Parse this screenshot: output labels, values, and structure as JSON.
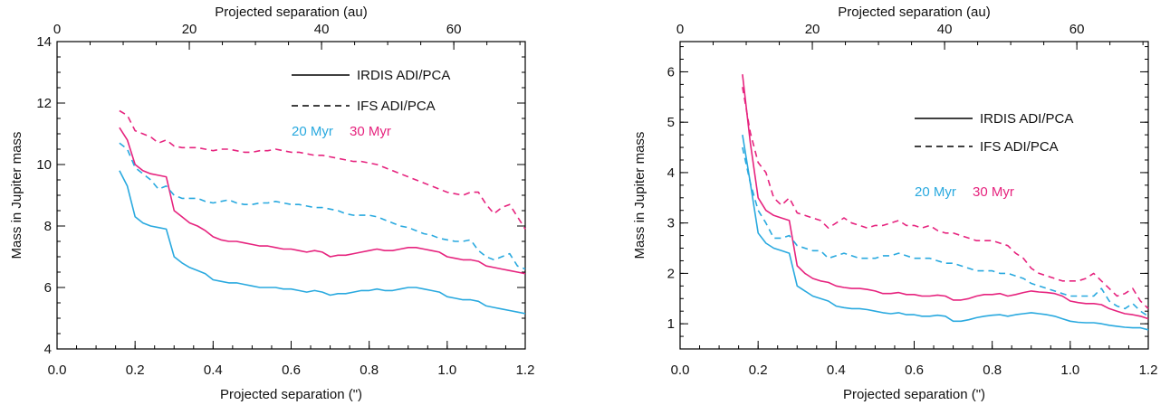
{
  "chart_data": [
    {
      "type": "line",
      "xlabel": "Projected separation (\")",
      "ylabel": "Mass in Jupiter mass",
      "top_xlabel": "Projected separation (au)",
      "xlim": [
        0.0,
        1.2
      ],
      "ylim": [
        4,
        14
      ],
      "top_xlim": [
        0,
        70.8
      ],
      "x_ticks": [
        "0.0",
        "0.2",
        "0.4",
        "0.6",
        "0.8",
        "1.0",
        "1.2"
      ],
      "y_ticks": [
        "4",
        "6",
        "8",
        "10",
        "12",
        "14"
      ],
      "top_ticks": [
        "0",
        "20",
        "40",
        "60"
      ],
      "legend": {
        "solid": "IRDIS ADI/PCA",
        "dashed": "IFS ADI/PCA"
      },
      "ages": [
        {
          "label": "20 Myr",
          "color": "#29a9df"
        },
        {
          "label": "30 Myr",
          "color": "#e6237e"
        }
      ],
      "series": [
        {
          "age": "20 Myr",
          "instrument": "IRDIS ADI/PCA",
          "style": "solid",
          "color": "#29a9df",
          "x": [
            0.16,
            0.18,
            0.2,
            0.22,
            0.24,
            0.26,
            0.28,
            0.3,
            0.32,
            0.34,
            0.36,
            0.38,
            0.4,
            0.42,
            0.44,
            0.46,
            0.48,
            0.5,
            0.52,
            0.54,
            0.56,
            0.58,
            0.6,
            0.62,
            0.64,
            0.66,
            0.68,
            0.7,
            0.72,
            0.74,
            0.76,
            0.78,
            0.8,
            0.82,
            0.84,
            0.86,
            0.88,
            0.9,
            0.92,
            0.94,
            0.96,
            0.98,
            1.0,
            1.02,
            1.04,
            1.06,
            1.08,
            1.1,
            1.12,
            1.14,
            1.16,
            1.18,
            1.2
          ],
          "y": [
            9.8,
            9.3,
            8.3,
            8.1,
            8.0,
            7.95,
            7.9,
            7.0,
            6.8,
            6.65,
            6.55,
            6.45,
            6.25,
            6.2,
            6.15,
            6.15,
            6.1,
            6.05,
            6.0,
            6.0,
            6.0,
            5.95,
            5.95,
            5.9,
            5.85,
            5.9,
            5.85,
            5.75,
            5.8,
            5.8,
            5.85,
            5.9,
            5.9,
            5.95,
            5.9,
            5.9,
            5.95,
            6.0,
            6.0,
            5.95,
            5.9,
            5.85,
            5.7,
            5.65,
            5.6,
            5.6,
            5.55,
            5.4,
            5.35,
            5.3,
            5.25,
            5.2,
            5.15
          ]
        },
        {
          "age": "30 Myr",
          "instrument": "IRDIS ADI/PCA",
          "style": "solid",
          "color": "#e6237e",
          "x": [
            0.16,
            0.18,
            0.2,
            0.22,
            0.24,
            0.26,
            0.28,
            0.3,
            0.32,
            0.34,
            0.36,
            0.38,
            0.4,
            0.42,
            0.44,
            0.46,
            0.48,
            0.5,
            0.52,
            0.54,
            0.56,
            0.58,
            0.6,
            0.62,
            0.64,
            0.66,
            0.68,
            0.7,
            0.72,
            0.74,
            0.76,
            0.78,
            0.8,
            0.82,
            0.84,
            0.86,
            0.88,
            0.9,
            0.92,
            0.94,
            0.96,
            0.98,
            1.0,
            1.02,
            1.04,
            1.06,
            1.08,
            1.1,
            1.12,
            1.14,
            1.16,
            1.18,
            1.2
          ],
          "y": [
            11.2,
            10.8,
            10.0,
            9.8,
            9.7,
            9.65,
            9.6,
            8.5,
            8.3,
            8.1,
            8.0,
            7.85,
            7.65,
            7.55,
            7.5,
            7.5,
            7.45,
            7.4,
            7.35,
            7.35,
            7.3,
            7.25,
            7.25,
            7.2,
            7.15,
            7.2,
            7.15,
            7.0,
            7.05,
            7.05,
            7.1,
            7.15,
            7.2,
            7.25,
            7.2,
            7.2,
            7.25,
            7.3,
            7.3,
            7.25,
            7.2,
            7.15,
            7.0,
            6.95,
            6.9,
            6.9,
            6.85,
            6.7,
            6.65,
            6.6,
            6.55,
            6.5,
            6.45
          ]
        },
        {
          "age": "20 Myr",
          "instrument": "IFS ADI/PCA",
          "style": "dashed",
          "color": "#29a9df",
          "x": [
            0.16,
            0.18,
            0.2,
            0.22,
            0.24,
            0.26,
            0.28,
            0.3,
            0.32,
            0.34,
            0.36,
            0.38,
            0.4,
            0.42,
            0.44,
            0.46,
            0.48,
            0.5,
            0.52,
            0.54,
            0.56,
            0.58,
            0.6,
            0.62,
            0.64,
            0.66,
            0.68,
            0.7,
            0.72,
            0.74,
            0.76,
            0.78,
            0.8,
            0.82,
            0.84,
            0.86,
            0.88,
            0.9,
            0.92,
            0.94,
            0.96,
            0.98,
            1.0,
            1.02,
            1.04,
            1.06,
            1.08,
            1.1,
            1.12,
            1.14,
            1.16,
            1.18,
            1.2
          ],
          "y": [
            10.7,
            10.5,
            9.9,
            9.7,
            9.5,
            9.2,
            9.3,
            9.0,
            8.9,
            8.9,
            8.9,
            8.8,
            8.75,
            8.8,
            8.85,
            8.75,
            8.7,
            8.7,
            8.75,
            8.75,
            8.8,
            8.75,
            8.7,
            8.7,
            8.65,
            8.6,
            8.6,
            8.55,
            8.5,
            8.4,
            8.35,
            8.35,
            8.35,
            8.3,
            8.2,
            8.1,
            8.0,
            7.95,
            7.85,
            7.75,
            7.7,
            7.6,
            7.55,
            7.5,
            7.5,
            7.55,
            7.2,
            7.0,
            6.9,
            7.0,
            7.1,
            6.7,
            6.6
          ]
        },
        {
          "age": "30 Myr",
          "instrument": "IFS ADI/PCA",
          "style": "dashed",
          "color": "#e6237e",
          "x": [
            0.16,
            0.18,
            0.2,
            0.22,
            0.24,
            0.26,
            0.28,
            0.3,
            0.32,
            0.34,
            0.36,
            0.38,
            0.4,
            0.42,
            0.44,
            0.46,
            0.48,
            0.5,
            0.52,
            0.54,
            0.56,
            0.58,
            0.6,
            0.62,
            0.64,
            0.66,
            0.68,
            0.7,
            0.72,
            0.74,
            0.76,
            0.78,
            0.8,
            0.82,
            0.84,
            0.86,
            0.88,
            0.9,
            0.92,
            0.94,
            0.96,
            0.98,
            1.0,
            1.02,
            1.04,
            1.06,
            1.08,
            1.1,
            1.12,
            1.14,
            1.16,
            1.18,
            1.2
          ],
          "y": [
            11.75,
            11.6,
            11.1,
            11.0,
            10.9,
            10.7,
            10.8,
            10.6,
            10.55,
            10.55,
            10.55,
            10.5,
            10.45,
            10.5,
            10.5,
            10.45,
            10.4,
            10.4,
            10.45,
            10.45,
            10.5,
            10.45,
            10.4,
            10.4,
            10.35,
            10.3,
            10.3,
            10.25,
            10.2,
            10.15,
            10.1,
            10.1,
            10.05,
            10.0,
            9.9,
            9.8,
            9.7,
            9.6,
            9.5,
            9.4,
            9.3,
            9.2,
            9.1,
            9.05,
            9.0,
            9.1,
            9.1,
            8.7,
            8.4,
            8.6,
            8.7,
            8.3,
            7.9
          ]
        }
      ]
    },
    {
      "type": "line",
      "xlabel": "Projected separation (\")",
      "ylabel": "Mass in Jupiter mass",
      "top_xlabel": "Projected separation (au)",
      "xlim": [
        0.0,
        1.2
      ],
      "ylim": [
        0.5,
        6.6
      ],
      "top_xlim": [
        0,
        70.8
      ],
      "x_ticks": [
        "0.0",
        "0.2",
        "0.4",
        "0.6",
        "0.8",
        "1.0",
        "1.2"
      ],
      "y_ticks": [
        "1",
        "2",
        "3",
        "4",
        "5",
        "6"
      ],
      "top_ticks": [
        "0",
        "20",
        "40",
        "60"
      ],
      "legend": {
        "solid": "IRDIS ADI/PCA",
        "dashed": "IFS ADI/PCA"
      },
      "ages": [
        {
          "label": "20 Myr",
          "color": "#29a9df"
        },
        {
          "label": "30 Myr",
          "color": "#e6237e"
        }
      ],
      "series": [
        {
          "age": "20 Myr",
          "instrument": "IRDIS ADI/PCA",
          "style": "solid",
          "color": "#29a9df",
          "x": [
            0.16,
            0.18,
            0.2,
            0.22,
            0.24,
            0.26,
            0.28,
            0.3,
            0.32,
            0.34,
            0.36,
            0.38,
            0.4,
            0.42,
            0.44,
            0.46,
            0.48,
            0.5,
            0.52,
            0.54,
            0.56,
            0.58,
            0.6,
            0.62,
            0.64,
            0.66,
            0.68,
            0.7,
            0.72,
            0.74,
            0.76,
            0.78,
            0.8,
            0.82,
            0.84,
            0.86,
            0.88,
            0.9,
            0.92,
            0.94,
            0.96,
            0.98,
            1.0,
            1.02,
            1.04,
            1.06,
            1.08,
            1.1,
            1.12,
            1.14,
            1.16,
            1.18,
            1.2
          ],
          "y": [
            4.75,
            3.8,
            2.8,
            2.6,
            2.5,
            2.45,
            2.4,
            1.75,
            1.65,
            1.55,
            1.5,
            1.45,
            1.35,
            1.32,
            1.3,
            1.3,
            1.28,
            1.25,
            1.22,
            1.2,
            1.22,
            1.18,
            1.18,
            1.15,
            1.15,
            1.17,
            1.15,
            1.05,
            1.05,
            1.08,
            1.12,
            1.15,
            1.17,
            1.18,
            1.15,
            1.18,
            1.2,
            1.22,
            1.2,
            1.18,
            1.15,
            1.1,
            1.05,
            1.03,
            1.02,
            1.02,
            1.0,
            0.97,
            0.95,
            0.93,
            0.92,
            0.92,
            0.88
          ]
        },
        {
          "age": "30 Myr",
          "instrument": "IRDIS ADI/PCA",
          "style": "solid",
          "color": "#e6237e",
          "x": [
            0.16,
            0.18,
            0.2,
            0.22,
            0.24,
            0.26,
            0.28,
            0.3,
            0.32,
            0.34,
            0.36,
            0.38,
            0.4,
            0.42,
            0.44,
            0.46,
            0.48,
            0.5,
            0.52,
            0.54,
            0.56,
            0.58,
            0.6,
            0.62,
            0.64,
            0.66,
            0.68,
            0.7,
            0.72,
            0.74,
            0.76,
            0.78,
            0.8,
            0.82,
            0.84,
            0.86,
            0.88,
            0.9,
            0.92,
            0.94,
            0.96,
            0.98,
            1.0,
            1.02,
            1.04,
            1.06,
            1.08,
            1.1,
            1.12,
            1.14,
            1.16,
            1.18,
            1.2
          ],
          "y": [
            5.95,
            4.6,
            3.5,
            3.25,
            3.15,
            3.1,
            3.05,
            2.15,
            2.0,
            1.9,
            1.85,
            1.82,
            1.75,
            1.72,
            1.7,
            1.7,
            1.68,
            1.65,
            1.6,
            1.6,
            1.62,
            1.58,
            1.58,
            1.55,
            1.55,
            1.57,
            1.55,
            1.47,
            1.47,
            1.5,
            1.55,
            1.58,
            1.58,
            1.6,
            1.55,
            1.58,
            1.62,
            1.65,
            1.63,
            1.62,
            1.6,
            1.55,
            1.45,
            1.42,
            1.4,
            1.4,
            1.38,
            1.3,
            1.25,
            1.2,
            1.18,
            1.15,
            1.1
          ]
        },
        {
          "age": "20 Myr",
          "instrument": "IFS ADI/PCA",
          "style": "dashed",
          "color": "#29a9df",
          "x": [
            0.16,
            0.18,
            0.2,
            0.22,
            0.24,
            0.26,
            0.28,
            0.3,
            0.32,
            0.34,
            0.36,
            0.38,
            0.4,
            0.42,
            0.44,
            0.46,
            0.48,
            0.5,
            0.52,
            0.54,
            0.56,
            0.58,
            0.6,
            0.62,
            0.64,
            0.66,
            0.68,
            0.7,
            0.72,
            0.74,
            0.76,
            0.78,
            0.8,
            0.82,
            0.84,
            0.86,
            0.88,
            0.9,
            0.92,
            0.94,
            0.96,
            0.98,
            1.0,
            1.02,
            1.04,
            1.06,
            1.08,
            1.1,
            1.12,
            1.14,
            1.16,
            1.18,
            1.2
          ],
          "y": [
            4.5,
            3.8,
            3.25,
            3.0,
            2.7,
            2.7,
            2.75,
            2.55,
            2.5,
            2.45,
            2.45,
            2.3,
            2.35,
            2.4,
            2.35,
            2.3,
            2.3,
            2.3,
            2.35,
            2.35,
            2.4,
            2.35,
            2.3,
            2.3,
            2.3,
            2.25,
            2.2,
            2.2,
            2.15,
            2.1,
            2.05,
            2.05,
            2.05,
            2.0,
            2.0,
            1.95,
            1.9,
            1.8,
            1.75,
            1.7,
            1.65,
            1.6,
            1.55,
            1.55,
            1.55,
            1.55,
            1.7,
            1.45,
            1.35,
            1.3,
            1.4,
            1.25,
            1.15
          ]
        },
        {
          "age": "30 Myr",
          "instrument": "IFS ADI/PCA",
          "style": "dashed",
          "color": "#e6237e",
          "x": [
            0.16,
            0.18,
            0.2,
            0.22,
            0.24,
            0.26,
            0.28,
            0.3,
            0.32,
            0.34,
            0.36,
            0.38,
            0.4,
            0.42,
            0.44,
            0.46,
            0.48,
            0.5,
            0.52,
            0.54,
            0.56,
            0.58,
            0.6,
            0.62,
            0.64,
            0.66,
            0.68,
            0.7,
            0.72,
            0.74,
            0.76,
            0.78,
            0.8,
            0.82,
            0.84,
            0.86,
            0.88,
            0.9,
            0.92,
            0.94,
            0.96,
            0.98,
            1.0,
            1.02,
            1.04,
            1.06,
            1.08,
            1.1,
            1.12,
            1.14,
            1.16,
            1.18,
            1.2
          ],
          "y": [
            5.7,
            4.8,
            4.2,
            4.0,
            3.5,
            3.35,
            3.5,
            3.2,
            3.15,
            3.1,
            3.05,
            2.9,
            3.0,
            3.1,
            3.0,
            2.95,
            2.9,
            2.95,
            2.95,
            3.0,
            3.05,
            2.95,
            2.95,
            2.9,
            2.95,
            2.85,
            2.8,
            2.8,
            2.75,
            2.7,
            2.65,
            2.65,
            2.65,
            2.6,
            2.55,
            2.4,
            2.3,
            2.1,
            2.0,
            1.95,
            1.9,
            1.85,
            1.85,
            1.85,
            1.9,
            2.0,
            1.85,
            1.7,
            1.55,
            1.6,
            1.7,
            1.45,
            1.3
          ]
        }
      ]
    }
  ]
}
